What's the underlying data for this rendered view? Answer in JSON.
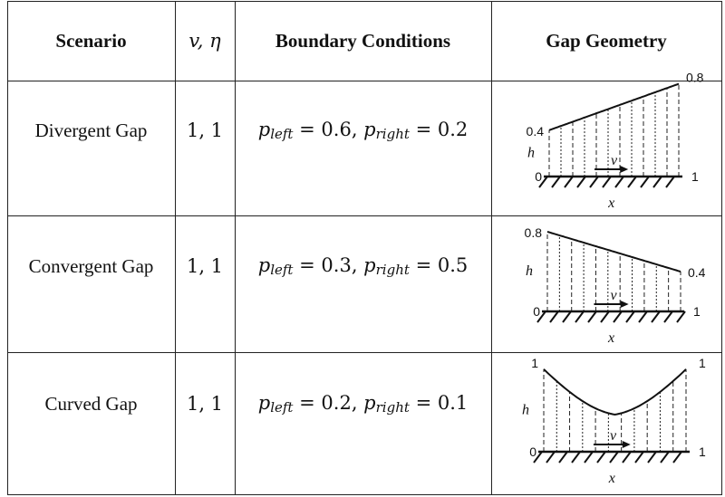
{
  "header": {
    "scenario": "Scenario",
    "params": "v, η",
    "boundary": "Boundary Conditions",
    "geometry": "Gap Geometry"
  },
  "rows": [
    {
      "scenario": "Divergent Gap",
      "params": "1, 1",
      "p_left": "0.6",
      "p_right": "0.2",
      "geometry": {
        "shape": "linear",
        "h_left": "0.4",
        "h_right": "0.8",
        "x_start": "0",
        "x_end": "1",
        "h_label": "h",
        "x_label": "x",
        "v_label": "v"
      }
    },
    {
      "scenario": "Convergent Gap",
      "params": "1, 1",
      "p_left": "0.3",
      "p_right": "0.5",
      "geometry": {
        "shape": "linear",
        "h_left": "0.8",
        "h_right": "0.4",
        "x_start": "0",
        "x_end": "1",
        "h_label": "h",
        "x_label": "x",
        "v_label": "v"
      }
    },
    {
      "scenario": "Curved Gap",
      "params": "1, 1",
      "p_left": "0.2",
      "p_right": "0.1",
      "geometry": {
        "shape": "curved",
        "h_left": "1",
        "h_right": "1",
        "x_start": "0",
        "x_end": "1",
        "h_label": "h",
        "x_label": "x",
        "v_label": "v"
      }
    }
  ],
  "math_symbols": {
    "p": "p",
    "left_sub": "left",
    "right_sub": "right"
  }
}
